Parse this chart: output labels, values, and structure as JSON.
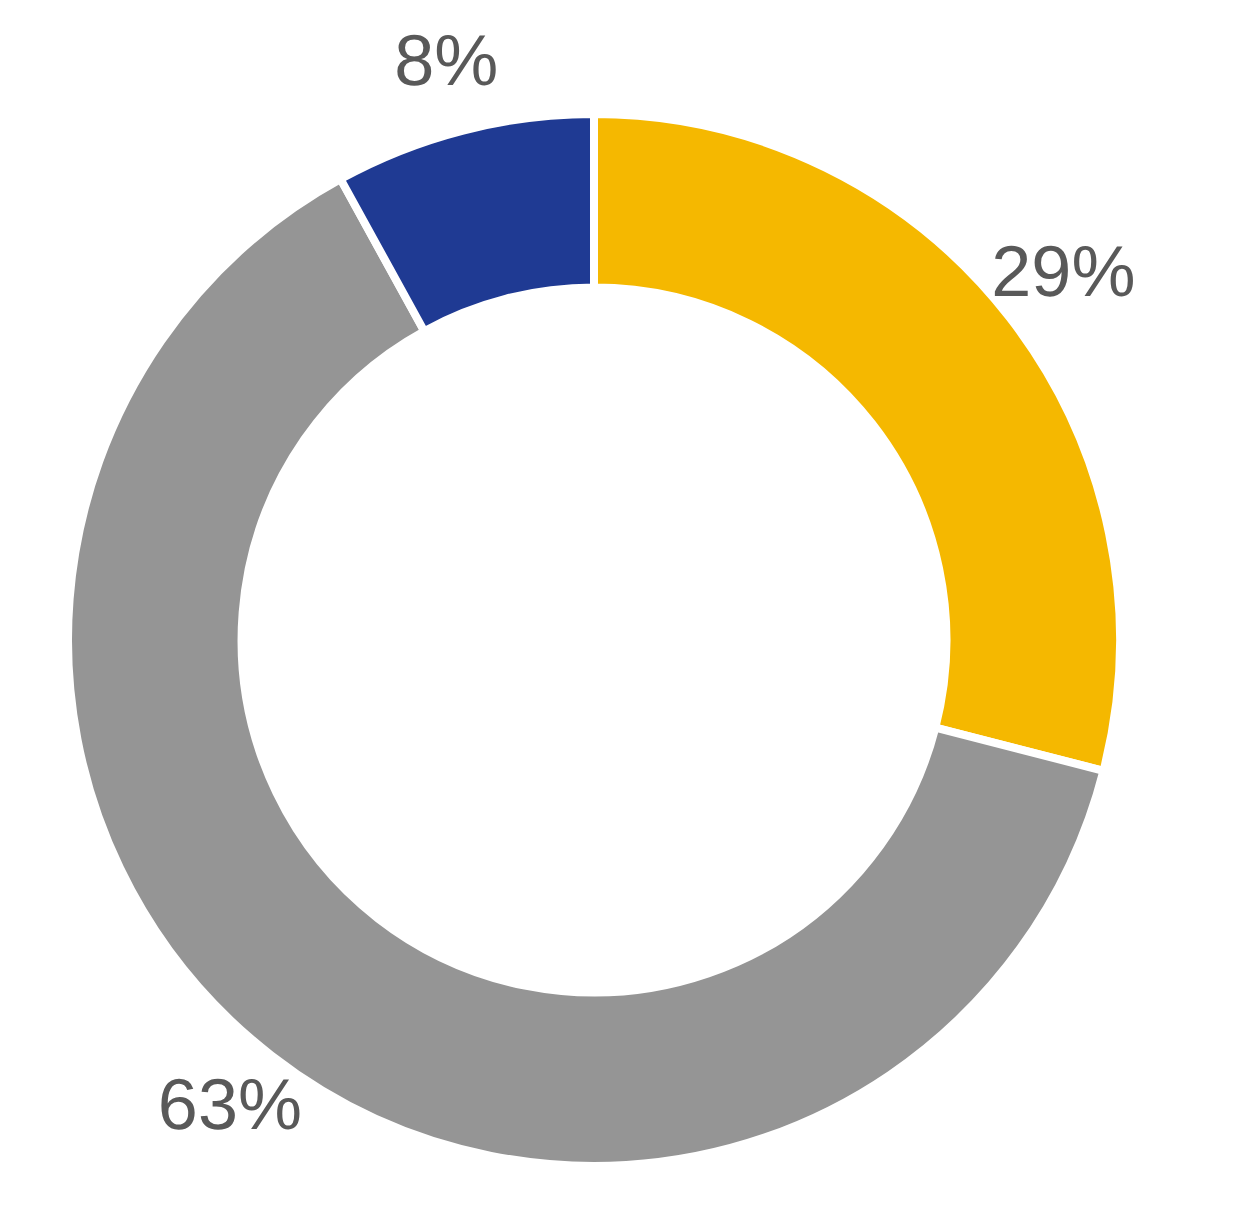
{
  "chart_data": {
    "type": "donut",
    "categories": [
      null,
      null,
      null
    ],
    "values": [
      29,
      63,
      8
    ],
    "colors": [
      "#f5b800",
      "#959595",
      "#1f3a93"
    ],
    "value_labels": [
      "29%",
      "63%",
      "8%"
    ],
    "legend": false
  }
}
